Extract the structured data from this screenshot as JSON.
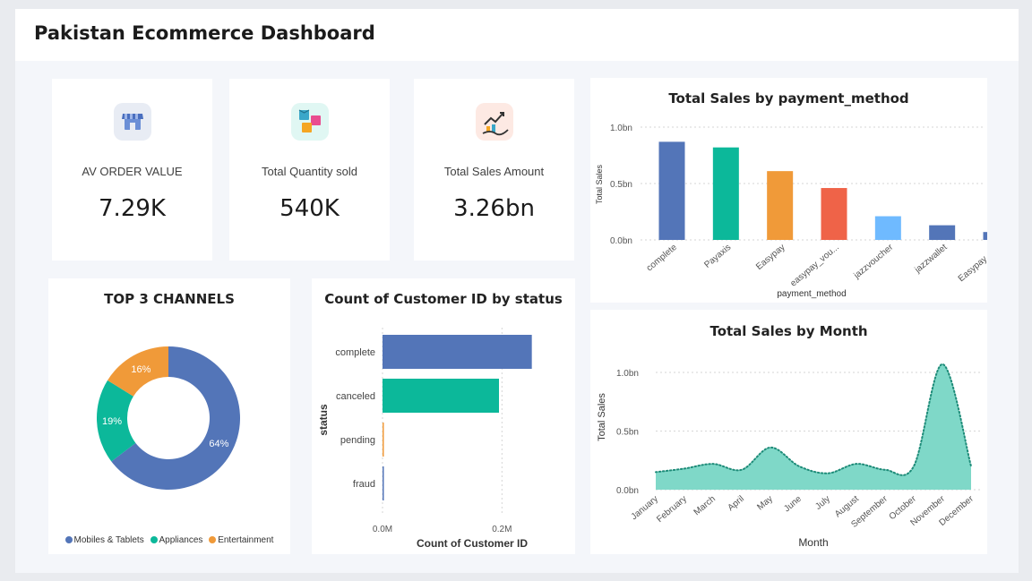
{
  "header": {
    "title": "Pakistan Ecommerce Dashboard"
  },
  "kpis": [
    {
      "icon": "store-icon",
      "label": "AV ORDER VALUE",
      "value": "7.29K",
      "bg": "#e8ecf4"
    },
    {
      "icon": "boxes-icon",
      "label": "Total Quantity sold",
      "value": "540K",
      "bg": "#e0f7f3"
    },
    {
      "icon": "sales-hand-icon",
      "label": "Total Sales Amount",
      "value": "3.26bn",
      "bg": "#fde9e3"
    }
  ],
  "colors": {
    "blue": "#5375b8",
    "teal": "#0cb89a",
    "orange": "#f09a39",
    "red": "#ef6348",
    "lightblue": "#6fbaff",
    "area": "#7fd8c8",
    "areaLine": "#1e8c79",
    "grid": "#d6d6d6"
  },
  "chart_data": [
    {
      "id": "donut",
      "type": "pie",
      "title": "TOP 3 CHANNELS",
      "categories": [
        "Mobiles & Tablets",
        "Appliances",
        "Entertainment"
      ],
      "values": [
        64,
        19,
        16
      ],
      "labels": [
        "64%",
        "19%",
        "16%"
      ],
      "colors": [
        "#5375b8",
        "#0cb89a",
        "#f09a39"
      ],
      "legend": "bottom"
    },
    {
      "id": "status",
      "type": "bar",
      "orientation": "horizontal",
      "title": "Count of Customer ID by status",
      "categories": [
        "complete",
        "canceled",
        "pending",
        "fraud"
      ],
      "values": [
        250000,
        195000,
        1500,
        1000
      ],
      "colors": [
        "#5375b8",
        "#0cb89a",
        "#f09a39",
        "#5375b8"
      ],
      "xlabel": "Count of Customer ID",
      "ylabel": "status",
      "xlim": [
        0,
        300000
      ],
      "xticks": [
        {
          "value": 0,
          "label": "0.0M"
        },
        {
          "value": 200000,
          "label": "0.2M"
        }
      ]
    },
    {
      "id": "payment",
      "type": "bar",
      "title": "Total Sales by payment_method",
      "categories": [
        "complete",
        "Payaxis",
        "Easypay",
        "easypay_vou...",
        "jazzvoucher",
        "jazzwallet",
        "Easypay_MA"
      ],
      "values": [
        0.87,
        0.82,
        0.61,
        0.46,
        0.21,
        0.13,
        0.07
      ],
      "colors": [
        "#5375b8",
        "#0cb89a",
        "#f09a39",
        "#ef6348",
        "#6fbaff",
        "#5375b8",
        "#5375b8"
      ],
      "xlabel": "payment_method",
      "ylabel": "Total Sales",
      "ylim": [
        0,
        1.0
      ],
      "yticks": [
        {
          "value": 0,
          "label": "0.0bn"
        },
        {
          "value": 0.5,
          "label": "0.5bn"
        },
        {
          "value": 1.0,
          "label": "1.0bn"
        }
      ]
    },
    {
      "id": "month",
      "type": "area",
      "title": "Total Sales by Month",
      "categories": [
        "January",
        "February",
        "March",
        "April",
        "May",
        "June",
        "July",
        "August",
        "September",
        "October",
        "November",
        "December"
      ],
      "values": [
        0.15,
        0.18,
        0.22,
        0.17,
        0.36,
        0.2,
        0.14,
        0.22,
        0.17,
        0.2,
        1.07,
        0.2
      ],
      "xlabel": "Month",
      "ylabel": "Total Sales",
      "ylim": [
        0,
        1.0
      ],
      "yticks": [
        {
          "value": 0,
          "label": "0.0bn"
        },
        {
          "value": 0.5,
          "label": "0.5bn"
        },
        {
          "value": 1.0,
          "label": "1.0bn"
        }
      ]
    }
  ]
}
